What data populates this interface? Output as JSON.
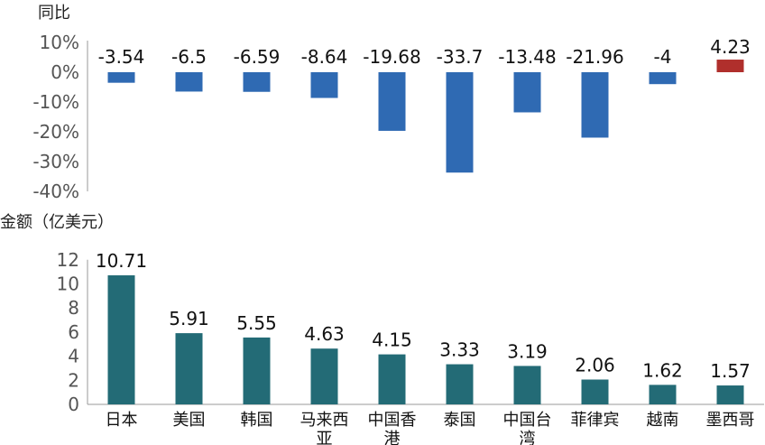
{
  "colors": {
    "yoy_negative": "#2F6AB3",
    "yoy_positive": "#B02F2C",
    "amount_bar": "#236B76",
    "axis": "#999999",
    "tick_text": "#555555",
    "label_text": "#111111"
  },
  "chart_data": [
    {
      "type": "bar",
      "ylabel": "同比",
      "categories": [
        "日本",
        "美国",
        "韩国",
        "马来西亚",
        "中国香港",
        "泰国",
        "中国台湾",
        "菲律宾",
        "越南",
        "墨西哥"
      ],
      "values": [
        -3.54,
        -6.5,
        -6.59,
        -8.64,
        -19.68,
        -33.7,
        -13.48,
        -21.96,
        -4,
        4.23
      ],
      "data_labels": [
        "-3.54",
        "-6.5",
        "-6.59",
        "-8.64",
        "-19.68",
        "-33.7",
        "-13.48",
        "-21.96",
        "-4",
        "4.23"
      ],
      "ylim": [
        -40,
        10
      ],
      "yticks": [
        10,
        0,
        -10,
        -20,
        -30,
        -40
      ],
      "ytick_labels": [
        "10%",
        "0%",
        "-10%",
        "-20%",
        "-30%",
        "-40%"
      ],
      "grid": false
    },
    {
      "type": "bar",
      "ylabel": "金额（亿美元）",
      "categories": [
        "日本",
        "美国",
        "韩国",
        "马来西亚",
        "中国香港",
        "泰国",
        "中国台湾",
        "菲律宾",
        "越南",
        "墨西哥"
      ],
      "category_labels": [
        [
          "日本"
        ],
        [
          "美国"
        ],
        [
          "韩国"
        ],
        [
          "马来西",
          "亚"
        ],
        [
          "中国香",
          "港"
        ],
        [
          "泰国"
        ],
        [
          "中国台",
          "湾"
        ],
        [
          "菲律宾"
        ],
        [
          "越南"
        ],
        [
          "墨西哥"
        ]
      ],
      "values": [
        10.71,
        5.91,
        5.55,
        4.63,
        4.15,
        3.33,
        3.19,
        2.06,
        1.62,
        1.57
      ],
      "data_labels": [
        "10.71",
        "5.91",
        "5.55",
        "4.63",
        "4.15",
        "3.33",
        "3.19",
        "2.06",
        "1.62",
        "1.57"
      ],
      "ylim": [
        0,
        12
      ],
      "yticks": [
        12,
        10,
        8,
        6,
        4,
        2,
        0
      ],
      "ytick_labels": [
        "12",
        "10",
        "8",
        "6",
        "4",
        "2",
        "0"
      ],
      "grid": false
    }
  ]
}
